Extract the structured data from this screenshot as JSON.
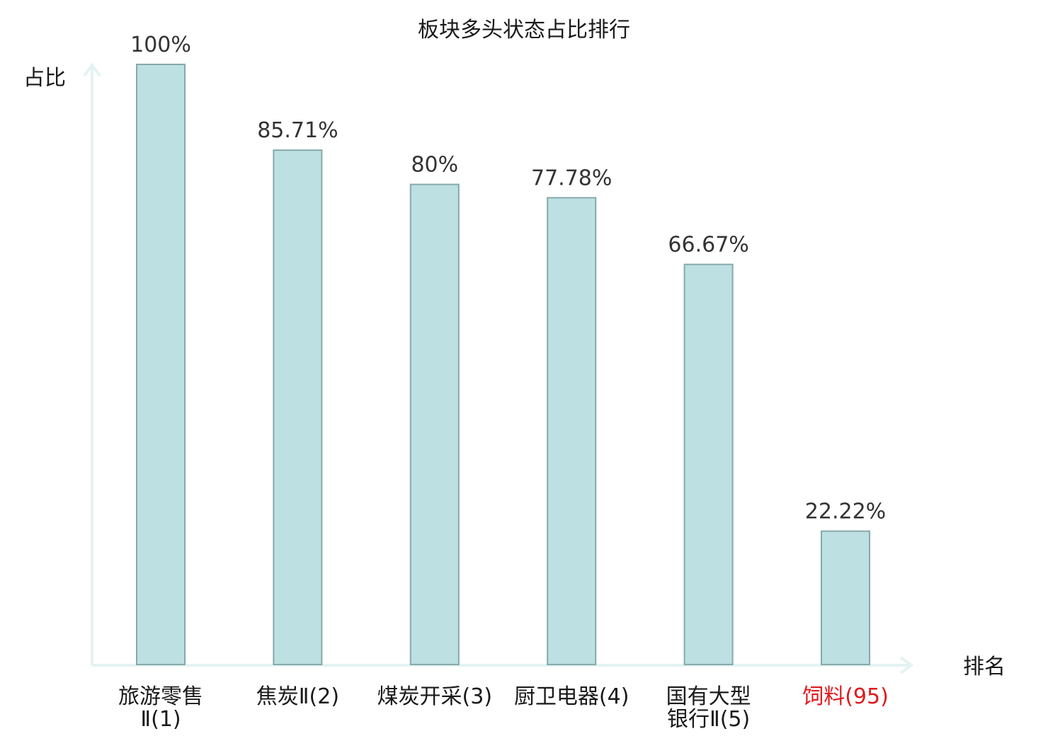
{
  "chart_data": {
    "type": "bar",
    "title": "板块多头状态占比排行",
    "ylabel": "占比",
    "xlabel": "排名",
    "ylim": [
      0,
      100
    ],
    "grid": false,
    "categories": [
      {
        "line1": "旅游零售",
        "line2": "Ⅱ(1)",
        "highlight": false
      },
      {
        "line1": "焦炭Ⅱ(2)",
        "line2": "",
        "highlight": false
      },
      {
        "line1": "煤炭开采(3)",
        "line2": "",
        "highlight": false
      },
      {
        "line1": "厨卫电器(4)",
        "line2": "",
        "highlight": false
      },
      {
        "line1": "国有大型",
        "line2": "银行Ⅱ(5)",
        "highlight": false
      },
      {
        "line1": "饲料(95)",
        "line2": "",
        "highlight": true
      }
    ],
    "values": [
      100,
      85.71,
      80,
      77.78,
      66.67,
      22.22
    ],
    "value_labels": [
      "100%",
      "85.71%",
      "80%",
      "77.78%",
      "66.67%",
      "22.22%"
    ],
    "colors": {
      "bar": "#bde0e2",
      "bar_border": "#86a9aa",
      "axis": "#e3f3f1",
      "highlight_text": "#e0191d"
    }
  }
}
